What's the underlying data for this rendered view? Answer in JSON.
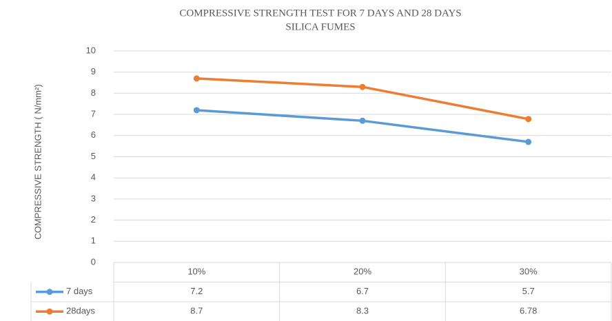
{
  "chart_data": {
    "type": "line",
    "title": [
      "COMPRESSIVE STRENGTH TEST FOR 7 DAYS AND 28 DAYS",
      "SILICA FUMES"
    ],
    "y_label": "COMPRESSIVE STRENGTH ( N/mm²)",
    "categories": [
      "10%",
      "20%",
      "30%"
    ],
    "series": [
      {
        "name": "7 days",
        "color": "#5b9bd5",
        "values": [
          7.2,
          6.7,
          5.7
        ]
      },
      {
        "name": "28days",
        "color": "#ed7d31",
        "values": [
          8.7,
          8.3,
          6.78
        ]
      }
    ],
    "ylim": [
      0,
      10
    ],
    "yticks": [
      0,
      1,
      2,
      3,
      4,
      5,
      6,
      7,
      8,
      9,
      10
    ],
    "grid": true,
    "data_table": true
  }
}
